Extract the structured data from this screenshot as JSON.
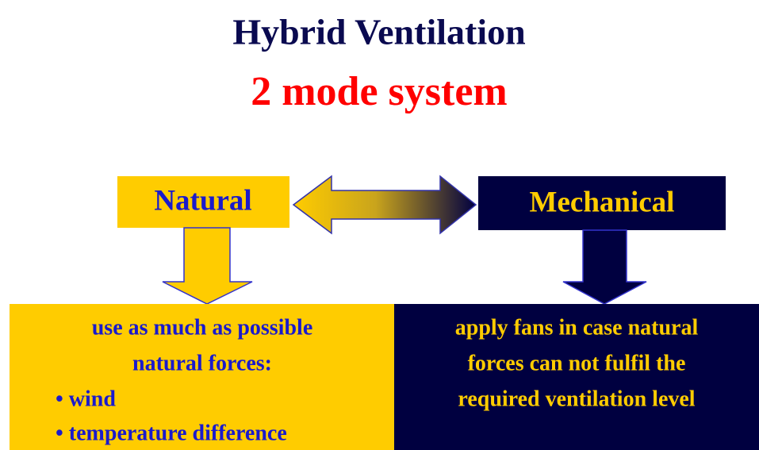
{
  "title": "Hybrid Ventilation",
  "subtitle": "2 mode system",
  "modes": [
    {
      "label": "Natural",
      "description": [
        "use as much as possible",
        "natural forces:"
      ],
      "bullets": [
        "• wind",
        "• temperature difference"
      ]
    },
    {
      "label": "Mechanical",
      "description": [
        "apply fans in case natural",
        "forces can not fulfil the",
        "required ventilation level"
      ]
    }
  ]
}
